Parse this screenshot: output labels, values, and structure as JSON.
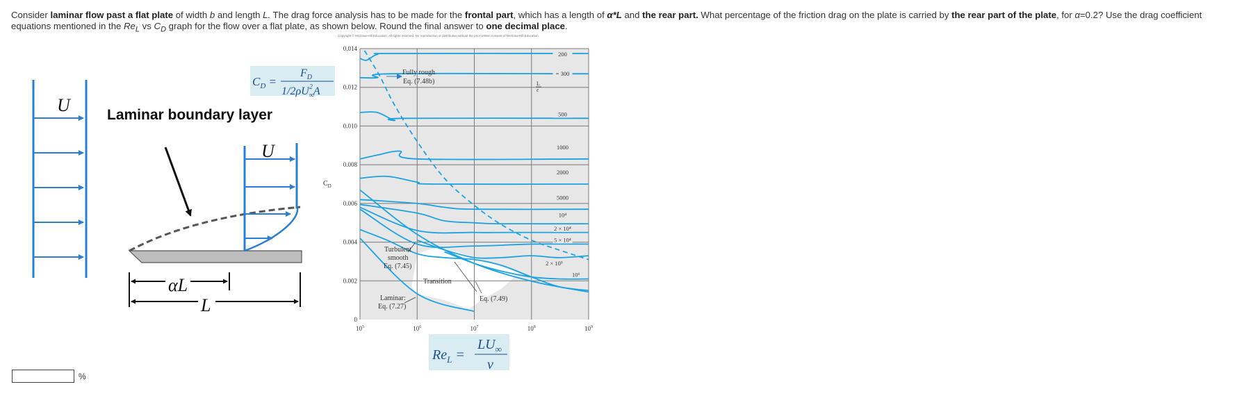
{
  "question": {
    "p1": "Consider ",
    "b1": "laminar flow past a flat plate",
    "p2": " of width ",
    "v_b": "b",
    "p3": " and length ",
    "v_L": "L.",
    "p4": " The drag force analysis has to be made for the ",
    "b2": "frontal part",
    "p5": ", which has a length of ",
    "b3": "α*L",
    "p6": " and ",
    "b4": "the rear part.",
    "p7": "   What percentage of the friction drag on the plate is carried by ",
    "b5": "the rear part of the plate",
    "p8": ", for ",
    "v_alpha": "α",
    "p9": "=0.2?   Use the drag coefficient equations mentioned in the ",
    "v_Re": "Re",
    "v_Re_sub": "L",
    "p10": " vs ",
    "v_C": "C",
    "v_C_sub": "D",
    "p11": " graph for the flow over a flat plate, as shown below. Round the final answer to ",
    "b6": "one decimal place",
    "p12": "."
  },
  "copyright": "Copyright © McGraw-Hill Education. All rights reserved. No reproduction or distribution without the prior written consent of McGraw-Hill Education.",
  "sketch": {
    "u_left": "U",
    "u_right": "U",
    "heading": "Laminar boundary layer",
    "alpha_L": "αL",
    "L": "L"
  },
  "formula_cd": {
    "lhs": "C",
    "lhs_sub": "D",
    "num": "F",
    "num_sub": "D",
    "den": "1/2ρU",
    "den_sub": "∞",
    "den_sup": "2",
    "den_tail": "A"
  },
  "formula_re": {
    "lhs": "Re",
    "lhs_sub": "L",
    "num": "LU",
    "num_sub": "∞",
    "den": "ν"
  },
  "chart_data": {
    "type": "line",
    "ylabel": "C",
    "ylabel_sub": "D",
    "x_scale": "log",
    "xlim": [
      100000,
      1000000000
    ],
    "ylim": [
      0,
      0.014
    ],
    "x_ticks": [
      {
        "value": 100000,
        "base": "10",
        "exp": "5"
      },
      {
        "value": 1000000,
        "base": "10",
        "exp": "6"
      },
      {
        "value": 10000000,
        "base": "10",
        "exp": "7"
      },
      {
        "value": 100000000,
        "base": "10",
        "exp": "8"
      },
      {
        "value": 1000000000,
        "base": "10",
        "exp": "9"
      }
    ],
    "y_ticks": [
      {
        "value": 0,
        "label": "0"
      },
      {
        "value": 0.002,
        "label": "0.002"
      },
      {
        "value": 0.004,
        "label": "0.004"
      },
      {
        "value": 0.006,
        "label": "0.006"
      },
      {
        "value": 0.008,
        "label": "0.008"
      },
      {
        "value": 0.01,
        "label": "0.010"
      },
      {
        "value": 0.012,
        "label": "0.012"
      },
      {
        "value": 0.014,
        "label": "0.014"
      }
    ],
    "grid": true,
    "series": [
      {
        "key": "laminar",
        "x": [
          100000,
          1000000,
          10000000
        ],
        "y": [
          0.0042,
          0.00133,
          0.00042
        ]
      },
      {
        "key": "turbulent",
        "x": [
          100000,
          1000000,
          10000000,
          100000000,
          1000000000
        ],
        "y": [
          0.0067,
          0.0044,
          0.0029,
          0.00198,
          0.00142
        ]
      },
      {
        "key": "fully_rough_boundary",
        "x": [
          120000,
          220000,
          400000,
          1000000,
          3000000,
          10000000,
          30000000,
          100000000,
          300000000,
          1000000000
        ],
        "y": [
          0.0139,
          0.0126,
          0.0111,
          0.0092,
          0.0073,
          0.0059,
          0.0049,
          0.0041,
          0.0036,
          0.0031
        ]
      },
      {
        "key": "transition",
        "x": [
          100000,
          300000,
          1000000,
          3000000,
          10000000,
          30000000,
          100000000,
          300000000,
          1000000000
        ],
        "y": [
          0.00465,
          0.0041,
          0.0034,
          0.0032,
          0.0031,
          0.0028,
          0.0022,
          0.0017,
          0.0015
        ]
      },
      {
        "key": "rough_200",
        "x": [
          100000,
          130000,
          200000,
          400000,
          1000000000
        ],
        "y": [
          0.0135,
          0.0134,
          0.0137,
          0.01375,
          0.01375
        ]
      },
      {
        "key": "rough_300",
        "x": [
          100000,
          200000,
          350000,
          1000000000
        ],
        "y": [
          0.0125,
          0.0125,
          0.0127,
          0.0127
        ]
      },
      {
        "key": "rough_500",
        "x": [
          100000,
          200000,
          400000,
          600000,
          1000000000
        ],
        "y": [
          0.0107,
          0.0107,
          0.0103,
          0.0104,
          0.0104
        ]
      },
      {
        "key": "rough_1000",
        "x": [
          100000,
          200000,
          500000,
          1000000,
          1000000000
        ],
        "y": [
          0.0083,
          0.0085,
          0.0087,
          0.0083,
          0.0083
        ]
      },
      {
        "key": "rough_2000",
        "x": [
          100000,
          300000,
          1000000,
          2000000,
          1000000000
        ],
        "y": [
          0.0073,
          0.0074,
          0.0071,
          0.007,
          0.007
        ]
      },
      {
        "key": "rough_5000",
        "x": [
          100000,
          1000000,
          3000000,
          10000000,
          1000000000
        ],
        "y": [
          0.0062,
          0.006,
          0.0058,
          0.0057,
          0.0057
        ]
      },
      {
        "key": "rough_1e4",
        "x": [
          100000,
          1000000,
          3000000,
          10000000,
          30000000,
          1000000000
        ],
        "y": [
          0.00595,
          0.0055,
          0.0051,
          0.005,
          0.00495,
          0.00495
        ]
      },
      {
        "key": "rough_2e4",
        "x": [
          100000,
          1000000,
          10000000,
          40000000,
          1000000000
        ],
        "y": [
          0.0058,
          0.0046,
          0.0045,
          0.0045,
          0.0045
        ]
      },
      {
        "key": "rough_5e4",
        "x": [
          100000,
          1000000,
          10000000,
          100000000,
          1000000000
        ],
        "y": [
          0.0057,
          0.0039,
          0.0038,
          0.0039,
          0.0039
        ]
      },
      {
        "key": "rough_2e5",
        "x": [
          1000000,
          3000000,
          10000000,
          30000000,
          100000000,
          300000000,
          1000000000
        ],
        "y": [
          0.0041,
          0.0036,
          0.0032,
          0.0032,
          0.0033,
          0.0032,
          0.0033
        ]
      },
      {
        "key": "rough_1e6",
        "x": [
          3000000,
          10000000,
          30000000,
          100000000,
          300000000,
          1000000000
        ],
        "y": [
          0.0035,
          0.0029,
          0.0025,
          0.0022,
          0.0021,
          0.0021
        ]
      }
    ],
    "curve_labels": [
      {
        "text": "200",
        "x": 350000000,
        "y": 0.0136
      },
      {
        "text": "= 300",
        "x": 350000000,
        "y": 0.0126
      },
      {
        "text": "500",
        "x": 350000000,
        "y": 0.0105
      },
      {
        "text": "1000",
        "x": 350000000,
        "y": 0.0088
      },
      {
        "text": "2000",
        "x": 350000000,
        "y": 0.0075
      },
      {
        "text": "5000",
        "x": 350000000,
        "y": 0.0062
      },
      {
        "text": "10⁴",
        "x": 350000000,
        "y": 0.0053
      },
      {
        "text": "2 × 10⁴",
        "x": 350000000,
        "y": 0.0046
      },
      {
        "text": "5 × 10⁴",
        "x": 350000000,
        "y": 0.004
      },
      {
        "text": "2 × 10⁵",
        "x": 250000000,
        "y": 0.0028
      },
      {
        "text": "10⁶",
        "x": 600000000,
        "y": 0.0022
      }
    ],
    "ratio_symbol": {
      "num": "L",
      "den": "ε"
    },
    "annotations": {
      "fully_rough_1": "Fully rough",
      "fully_rough_2": "Eq. (7.48b)",
      "turbulent_1": "Turbulent",
      "turbulent_2": "smooth",
      "turbulent_3": "Eq. (7.45)",
      "transition": "Transition",
      "laminar_1": "Laminar:",
      "laminar_2": "Eq. (7.27)",
      "eq749": "Eq. (7.49)"
    }
  },
  "answer": {
    "value": "",
    "unit": "%"
  }
}
